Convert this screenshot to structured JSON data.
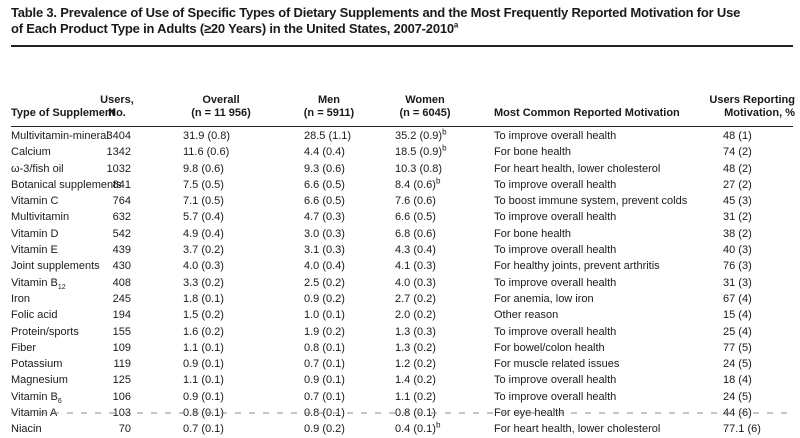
{
  "table": {
    "title_line1": "Table 3. Prevalence of Use of Specific Types of Dietary Supplements and the Most Frequently Reported Motivation for Use",
    "title_line2_pre": "of Each Product Type in Adults (",
    "title_line2_symbol": "≥",
    "title_line2_post": "20 Years) in the United States, 2007-2010",
    "title_footnote": "a",
    "headers": {
      "type": "Type of Supplement",
      "users_l1": "Users,",
      "users_l2": "No.",
      "overall_l1": "Overall",
      "overall_l2": "(n = 11 956)",
      "men_l1": "Men",
      "men_l2": "(n = 5911)",
      "women_l1": "Women",
      "women_l2": "(n = 6045)",
      "motivation": "Most Common Reported Motivation",
      "reporting_l1": "Users Reporting",
      "reporting_l2": "Motivation, %"
    },
    "rows": [
      {
        "type": "Multivitamin-mineral",
        "users": "3404",
        "overall": "31.9 (0.8)",
        "men": "28.5 (1.1)",
        "women": "35.2 (0.9)",
        "women_note": "b",
        "motivation": "To improve overall health",
        "reporting": "48 (1)"
      },
      {
        "type": "Calcium",
        "users": "1342",
        "overall": "11.6 (0.6)",
        "men": "4.4 (0.4)",
        "women": "18.5 (0.9)",
        "women_note": "b",
        "motivation": "For bone health",
        "reporting": "74 (2)"
      },
      {
        "type": "ω-3/fish oil",
        "users": "1032",
        "overall": "9.8 (0.6)",
        "men": "9.3 (0.6)",
        "women": "10.3 (0.8)",
        "women_note": "",
        "motivation": "For heart health, lower cholesterol",
        "reporting": "48 (2)"
      },
      {
        "type": "Botanical supplements",
        "users": "841",
        "overall": "7.5 (0.5)",
        "men": "6.6 (0.5)",
        "women": "8.4 (0.6)",
        "women_note": "b",
        "motivation": "To improve overall health",
        "reporting": "27 (2)"
      },
      {
        "type": "Vitamin C",
        "users": "764",
        "overall": "7.1 (0.5)",
        "men": "6.6 (0.5)",
        "women": "7.6 (0.6)",
        "women_note": "",
        "motivation": "To boost immune system, prevent colds",
        "reporting": "45 (3)"
      },
      {
        "type": "Multivitamin",
        "users": "632",
        "overall": "5.7 (0.4)",
        "men": "4.7 (0.3)",
        "women": "6.6 (0.5)",
        "women_note": "",
        "motivation": "To improve overall health",
        "reporting": "31 (2)"
      },
      {
        "type": "Vitamin D",
        "users": "542",
        "overall": "4.9 (0.4)",
        "men": "3.0 (0.3)",
        "women": "6.8 (0.6)",
        "women_note": "",
        "motivation": "For bone health",
        "reporting": "38 (2)"
      },
      {
        "type": "Vitamin E",
        "users": "439",
        "overall": "3.7 (0.2)",
        "men": "3.1 (0.3)",
        "women": "4.3 (0.4)",
        "women_note": "",
        "motivation": "To improve overall health",
        "reporting": "40 (3)"
      },
      {
        "type": "Joint supplements",
        "users": "430",
        "overall": "4.0 (0.3)",
        "men": "4.0 (0.4)",
        "women": "4.1 (0.3)",
        "women_note": "",
        "motivation": "For healthy joints, prevent arthritis",
        "reporting": "76 (3)"
      },
      {
        "type": "Vitamin B",
        "type_sub": "12",
        "users": "408",
        "overall": "3.3 (0.2)",
        "men": "2.5 (0.2)",
        "women": "4.0 (0.3)",
        "women_note": "",
        "motivation": "To improve overall health",
        "reporting": "31 (3)"
      },
      {
        "type": "Iron",
        "users": "245",
        "overall": "1.8 (0.1)",
        "men": "0.9 (0.2)",
        "women": "2.7 (0.2)",
        "women_note": "",
        "motivation": "For anemia, low iron",
        "reporting": "67 (4)"
      },
      {
        "type": "Folic acid",
        "users": "194",
        "overall": "1.5 (0.2)",
        "men": "1.0 (0.1)",
        "women": "2.0 (0.2)",
        "women_note": "",
        "motivation": "Other reason",
        "reporting": "15 (4)"
      },
      {
        "type": "Protein/sports",
        "users": "155",
        "overall": "1.6 (0.2)",
        "men": "1.9 (0.2)",
        "women": "1.3 (0.3)",
        "women_note": "",
        "motivation": "To improve overall health",
        "reporting": "25 (4)"
      },
      {
        "type": "Fiber",
        "users": "109",
        "overall": "1.1 (0.1)",
        "men": "0.8 (0.1)",
        "women": "1.3 (0.2)",
        "women_note": "",
        "motivation": "For bowel/colon health",
        "reporting": "77 (5)"
      },
      {
        "type": "Potassium",
        "users": "119",
        "overall": "0.9 (0.1)",
        "men": "0.7 (0.1)",
        "women": "1.2 (0.2)",
        "women_note": "",
        "motivation": "For muscle related issues",
        "reporting": "24 (5)"
      },
      {
        "type": "Magnesium",
        "users": "125",
        "overall": "1.1 (0.1)",
        "men": "0.9 (0.1)",
        "women": "1.4 (0.2)",
        "women_note": "",
        "motivation": "To improve overall health",
        "reporting": "18 (4)"
      },
      {
        "type": "Vitamin B",
        "type_sub": "6",
        "users": "106",
        "overall": "0.9 (0.1)",
        "men": "0.7 (0.1)",
        "women": "1.1 (0.2)",
        "women_note": "",
        "motivation": "To improve overall health",
        "reporting": "24 (5)"
      },
      {
        "type": "Vitamin A",
        "users": "103",
        "overall": "0.8 (0.1)",
        "men": "0.8 (0.1)",
        "women": "0.8 (0.1)",
        "women_note": "",
        "motivation": "For eye health",
        "reporting": "44 (6)"
      },
      {
        "type": "Niacin",
        "users": "70",
        "overall": "0.7 (0.1)",
        "men": "0.9 (0.2)",
        "women": "0.4 (0.1)",
        "women_note": "b",
        "motivation": "For heart health, lower cholesterol",
        "reporting": "77.1 (6)"
      }
    ]
  }
}
